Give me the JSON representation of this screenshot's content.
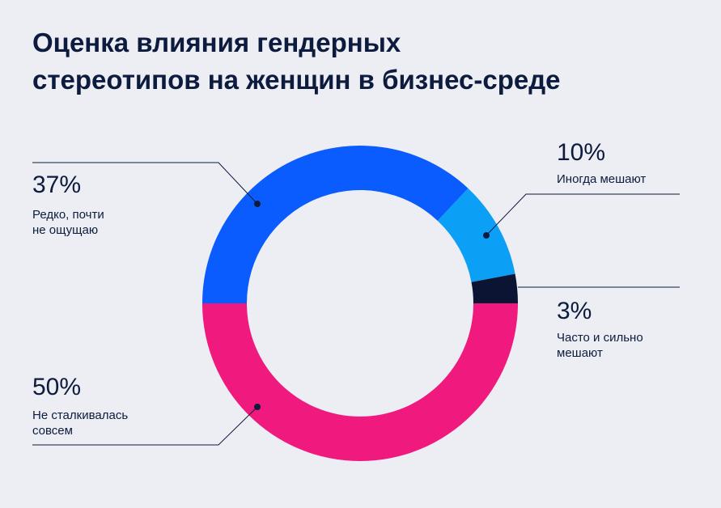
{
  "chart_data": {
    "type": "donut",
    "title": "Оценка влияния гендерных\nстереотипов на женщин в бизнес-среде",
    "categories": [
      "Редко, почти\nне ощущаю",
      "Иногда мешают",
      "Часто и сильно\nмешают",
      "Не сталкивалась\nсовсем"
    ],
    "values": [
      37,
      10,
      3,
      50
    ],
    "value_labels": [
      "37%",
      "10%",
      "3%",
      "50%"
    ],
    "colors": [
      "#0a5cff",
      "#0ba0f5",
      "#0b1533",
      "#f0197d"
    ]
  }
}
